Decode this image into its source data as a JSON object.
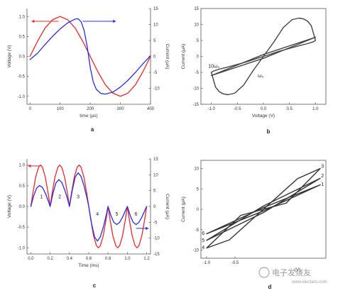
{
  "chart_data": [
    {
      "panel": "a",
      "type": "line",
      "panel_label": "a",
      "xlabel": "time (μs)",
      "ylabel": "Voltage (V)",
      "y2label": "Current (μA)",
      "xlim": [
        -10,
        400
      ],
      "ylim": [
        -1.2,
        1.2
      ],
      "y2lim": [
        -15,
        15
      ],
      "xticks": [
        0,
        100,
        200,
        300,
        400
      ],
      "yticks": [
        -1.0,
        -0.5,
        0.0,
        0.5,
        1.0
      ],
      "y2ticks": [
        -10,
        -5,
        0,
        5,
        10,
        15
      ],
      "series": [
        {
          "axis": "y",
          "color": "#e8282a",
          "x": [
            0,
            25,
            50,
            75,
            100,
            125,
            150,
            175,
            200,
            225,
            250,
            275,
            300,
            325,
            350,
            375,
            400
          ],
          "y": [
            0.0,
            0.38,
            0.71,
            0.92,
            1.0,
            0.92,
            0.71,
            0.38,
            0.0,
            -0.38,
            -0.71,
            -0.92,
            -1.0,
            -0.92,
            -0.71,
            -0.38,
            0.0
          ]
        },
        {
          "axis": "y2",
          "color": "#2c2cea",
          "x": [
            0,
            25,
            50,
            75,
            100,
            125,
            150,
            160,
            170,
            180,
            190,
            200,
            210,
            220,
            235,
            250,
            275,
            300,
            325,
            350,
            375,
            400
          ],
          "y": [
            -1.0,
            1.0,
            3.7,
            6.3,
            8.6,
            10.5,
            11.7,
            11.8,
            10.8,
            8.0,
            3.0,
            -3.5,
            -8.0,
            -10.3,
            -11.6,
            -11.8,
            -11.2,
            -9.6,
            -7.5,
            -5.0,
            -2.3,
            0.2
          ]
        }
      ],
      "arrows": [
        {
          "color": "#e8282a",
          "from_x": 95,
          "to_x": 5,
          "y": 0.88
        },
        {
          "color": "#2c2cea",
          "from_x": 175,
          "to_x": 285,
          "y": 0.88
        }
      ]
    },
    {
      "panel": "b",
      "type": "line",
      "panel_label": "b",
      "xlabel": "Voltage (V)",
      "ylabel": "Current (μA)",
      "xlim": [
        -1.2,
        1.2
      ],
      "ylim": [
        -15,
        15
      ],
      "xticks": [
        -1.0,
        -0.5,
        0.0,
        0.5,
        1.0
      ],
      "yticks": [
        -15,
        -10,
        -5,
        0,
        5,
        10,
        15
      ],
      "annotations": [
        {
          "text": "10ω₀",
          "x": -0.95,
          "y": -3.5
        },
        {
          "text": "ω₀",
          "x": -0.05,
          "y": -6.5
        }
      ],
      "series": [
        {
          "label_ref": "ω₀",
          "color": "#444444",
          "x": [
            0.0,
            0.2,
            0.38,
            0.55,
            0.68,
            0.78,
            0.85,
            0.92,
            1.0,
            0.96,
            0.85,
            0.7,
            0.5,
            0.3,
            0.1,
            0.0,
            -0.2,
            -0.38,
            -0.55,
            -0.68,
            -0.78,
            -0.85,
            -0.92,
            -1.0,
            -0.96,
            -0.85,
            -0.7,
            -0.5,
            -0.3,
            -0.1,
            0.0
          ],
          "y": [
            0.0,
            4.5,
            9.0,
            11.5,
            12.0,
            11.7,
            11.0,
            9.6,
            5.0,
            4.6,
            4.0,
            3.4,
            2.5,
            1.6,
            0.5,
            0.0,
            -4.5,
            -9.0,
            -11.5,
            -12.0,
            -11.7,
            -11.0,
            -9.6,
            -5.0,
            -4.6,
            -4.0,
            -3.4,
            -2.5,
            -1.6,
            -0.5,
            0.0
          ]
        },
        {
          "label_ref": "10ω₀",
          "color": "#444444",
          "x": [
            -1.0,
            0.0,
            1.0,
            0.0,
            -1.0
          ],
          "y": [
            -6.0,
            0.6,
            6.0,
            -0.6,
            -6.0
          ]
        }
      ]
    },
    {
      "panel": "c",
      "type": "line",
      "panel_label": "c",
      "xlabel": "Time (ms)",
      "ylabel": "Voltage (V)",
      "y2label": "Current (μA)",
      "xlim": [
        -0.04,
        1.24
      ],
      "ylim": [
        -1.15,
        1.15
      ],
      "y2lim": [
        -15,
        15
      ],
      "xticks": [
        0.0,
        0.2,
        0.4,
        0.6,
        0.8,
        1.0,
        1.2
      ],
      "yticks": [
        -1.0,
        -0.5,
        0.0,
        0.5,
        1.0
      ],
      "y2ticks": [
        -15,
        -10,
        -5,
        0,
        5,
        10,
        15
      ],
      "annotations": [
        {
          "text": "1",
          "x": 0.11,
          "y": 0.2
        },
        {
          "text": "2",
          "x": 0.3,
          "y": 0.2
        },
        {
          "text": "3",
          "x": 0.49,
          "y": 0.2
        },
        {
          "text": "4",
          "x": 0.69,
          "y": -0.22
        },
        {
          "text": "5",
          "x": 0.89,
          "y": -0.22
        },
        {
          "text": "6",
          "x": 1.09,
          "y": -0.22
        }
      ],
      "arrows": [
        {
          "color": "#e8282a",
          "from_x": 0.1,
          "to_x": -0.03,
          "y": 0.98
        },
        {
          "color": "#2c2cea",
          "from_x": 1.09,
          "to_x": 1.22,
          "y": -0.53
        }
      ],
      "series": [
        {
          "axis": "y",
          "color": "#e8282a",
          "x": [
            0.0,
            0.02,
            0.05,
            0.08,
            0.1,
            0.12,
            0.15,
            0.18,
            0.2,
            0.22,
            0.25,
            0.28,
            0.3,
            0.32,
            0.35,
            0.38,
            0.4,
            0.42,
            0.45,
            0.48,
            0.5,
            0.52,
            0.55,
            0.58,
            0.6,
            0.62,
            0.65,
            0.68,
            0.7,
            0.72,
            0.75,
            0.78,
            0.8,
            0.82,
            0.85,
            0.88,
            0.9,
            0.92,
            0.95,
            0.98,
            1.0,
            1.02,
            1.05,
            1.08,
            1.1,
            1.12,
            1.15,
            1.18,
            1.2
          ],
          "y": [
            0.0,
            0.31,
            0.71,
            0.95,
            1.0,
            0.95,
            0.71,
            0.31,
            0.0,
            0.31,
            0.71,
            0.95,
            1.0,
            0.95,
            0.71,
            0.31,
            0.0,
            0.31,
            0.71,
            0.95,
            1.0,
            0.95,
            0.71,
            0.31,
            0.0,
            -0.31,
            -0.71,
            -0.95,
            -1.0,
            -0.95,
            -0.71,
            -0.31,
            0.0,
            -0.31,
            -0.71,
            -0.95,
            -1.0,
            -0.95,
            -0.71,
            -0.31,
            0.0,
            -0.31,
            -0.71,
            -0.95,
            -1.0,
            -0.95,
            -0.71,
            -0.31,
            0.0
          ]
        },
        {
          "axis": "y2",
          "color": "#2c2cea",
          "x": [
            0.0,
            0.03,
            0.06,
            0.09,
            0.12,
            0.15,
            0.18,
            0.2,
            0.23,
            0.26,
            0.29,
            0.32,
            0.35,
            0.38,
            0.4,
            0.43,
            0.46,
            0.49,
            0.52,
            0.55,
            0.58,
            0.6,
            0.63,
            0.66,
            0.69,
            0.72,
            0.75,
            0.78,
            0.8,
            0.83,
            0.86,
            0.89,
            0.92,
            0.95,
            0.98,
            1.0,
            1.03,
            1.06,
            1.09,
            1.12,
            1.15,
            1.18,
            1.2
          ],
          "y": [
            0.0,
            3.4,
            5.8,
            6.6,
            6.0,
            4.2,
            1.8,
            0.0,
            4.2,
            7.4,
            8.5,
            7.6,
            5.3,
            2.4,
            0.0,
            5.2,
            9.3,
            10.6,
            9.5,
            6.6,
            2.9,
            0.0,
            -5.5,
            -9.6,
            -10.9,
            -9.6,
            -6.6,
            -2.9,
            0.0,
            -2.9,
            -5.0,
            -5.7,
            -5.0,
            -3.4,
            -1.3,
            0.0,
            -2.9,
            -5.0,
            -5.7,
            -5.0,
            -3.4,
            -1.3,
            0.0
          ]
        }
      ]
    },
    {
      "panel": "d",
      "type": "line",
      "panel_label": "d",
      "xlabel": "(V)",
      "ylabel": "Current (μA)",
      "xlim": [
        -1.1,
        1.1
      ],
      "ylim": [
        -12,
        12
      ],
      "xticks": [
        -1.0,
        -0.5
      ],
      "xtick_labels": [
        "-1.0",
        "-0.5"
      ],
      "yticks": [
        -10,
        -5,
        0,
        5,
        10
      ],
      "annotations": [
        {
          "text": "3",
          "x": 1.04,
          "y": 10.2
        },
        {
          "text": "2",
          "x": 1.04,
          "y": 7.8
        },
        {
          "text": "1",
          "x": 1.04,
          "y": 5.7
        },
        {
          "text": "6",
          "x": -1.06,
          "y": -6.3
        },
        {
          "text": "5",
          "x": -1.06,
          "y": -8.0
        },
        {
          "text": "4",
          "x": -1.06,
          "y": -9.7
        }
      ],
      "series": [
        {
          "color": "#333333",
          "x": [
            -1.0,
            0.0,
            1.0,
            0.0,
            -1.0
          ],
          "y": [
            -6.0,
            0.4,
            6.0,
            -0.4,
            -6.0
          ]
        },
        {
          "color": "#333333",
          "x": [
            -1.0,
            0.0,
            1.0,
            0.0,
            -1.0
          ],
          "y": [
            -7.6,
            0.8,
            7.6,
            -0.8,
            -7.6
          ]
        },
        {
          "color": "#333333",
          "x": [
            -1.0,
            -0.4,
            0.0,
            0.6,
            1.0,
            0.4,
            0.0,
            -0.6,
            -1.0
          ],
          "y": [
            -9.5,
            -1.5,
            0.0,
            7.5,
            10.0,
            1.5,
            0.0,
            -7.5,
            -9.5
          ]
        }
      ]
    }
  ],
  "watermark": {
    "text": "电子发烧友",
    "url_text": "www.elecfans.com"
  }
}
